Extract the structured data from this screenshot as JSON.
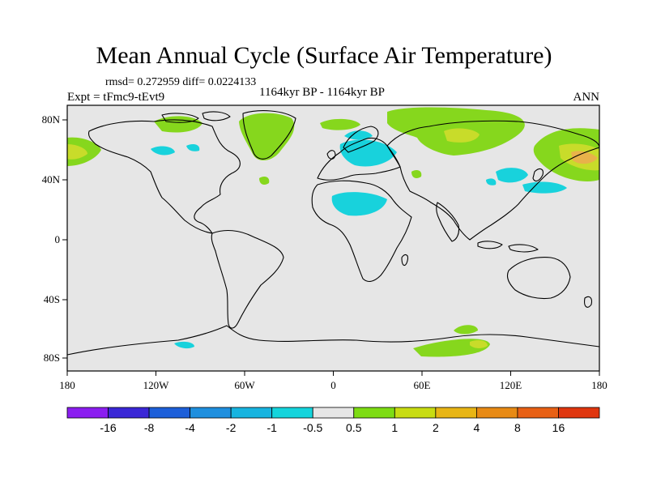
{
  "title": "Mean Annual Cycle (Surface Air Temperature)",
  "stats": "rmsd= 0.272959 diff= 0.0224133",
  "experiment": "Expt = tFmc9-tEvt9",
  "period": "1164kyr BP - 1164kyr BP",
  "season": "ANN",
  "lon_ticks": [
    "180",
    "120W",
    "60W",
    "0",
    "60E",
    "120E",
    "180"
  ],
  "lat_ticks": [
    "80N",
    "40N",
    "0",
    "40S",
    "80S"
  ],
  "colorbar": {
    "labels": [
      "-16",
      "-8",
      "-4",
      "-2",
      "-1",
      "-0.5",
      "0.5",
      "1",
      "2",
      "4",
      "8",
      "16"
    ],
    "colors": [
      "#8b1ef0",
      "#3a27d6",
      "#1d5fd9",
      "#1f8fde",
      "#17b4e0",
      "#14d4dc",
      "#e6e6e6",
      "#7ddc13",
      "#c8dc12",
      "#e8b515",
      "#e88a14",
      "#e86014",
      "#e0360f"
    ]
  },
  "map_colors": {
    "background": "#e6e6e6",
    "warm_light": "#86d71d",
    "warm_mid": "#c8dc2a",
    "warm_high": "#e8b24a",
    "cool_light": "#18d2dc",
    "coast": "#000000"
  }
}
